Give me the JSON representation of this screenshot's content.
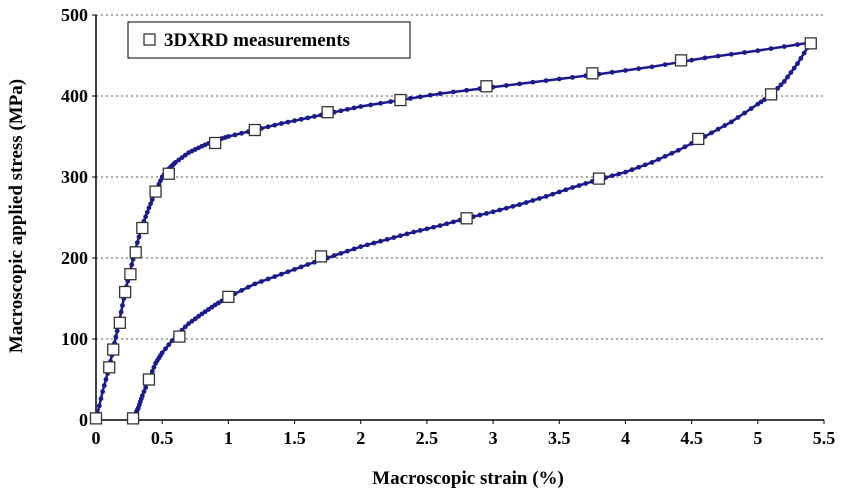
{
  "chart_data": {
    "type": "line",
    "xlabel": "Macroscopic strain (%)",
    "ylabel": "Macroscopic applied stress (MPa)",
    "xlim": [
      0,
      5.5
    ],
    "ylim": [
      0,
      500
    ],
    "x_ticks": [
      "0",
      "0.5",
      "1",
      "1.5",
      "2",
      "2.5",
      "3",
      "3.5",
      "4",
      "4.5",
      "5",
      "5.5"
    ],
    "y_ticks": [
      "0",
      "100",
      "200",
      "300",
      "400",
      "500"
    ],
    "grid": "horizontal-dashed",
    "legend_position": "top-left",
    "colors": {
      "curve": "#1a1a8c",
      "marker_fill": "#ffffff",
      "marker_stroke": "#333333"
    },
    "series": [
      {
        "role": "loading-curve",
        "x": [
          0,
          0.05,
          0.1,
          0.14,
          0.18,
          0.22,
          0.26,
          0.3,
          0.35,
          0.4,
          0.45,
          0.5,
          0.55,
          0.6,
          0.7,
          0.8,
          0.9,
          1.0,
          1.2,
          1.4,
          1.6,
          1.8,
          2.0,
          2.3,
          2.6,
          3.0,
          3.4,
          3.8,
          4.2,
          4.6,
          5.0,
          5.4
        ],
        "y": [
          0,
          35,
          65,
          95,
          125,
          158,
          185,
          212,
          240,
          262,
          282,
          300,
          310,
          318,
          330,
          338,
          345,
          350,
          358,
          366,
          373,
          380,
          387,
          395,
          403,
          411,
          419,
          427,
          436,
          447,
          456,
          466
        ]
      },
      {
        "role": "unloading-curve",
        "x": [
          5.4,
          5.3,
          5.2,
          5.1,
          5.0,
          4.8,
          4.6,
          4.4,
          4.2,
          4.0,
          3.8,
          3.6,
          3.4,
          3.2,
          3.0,
          2.8,
          2.6,
          2.4,
          2.2,
          2.0,
          1.8,
          1.6,
          1.4,
          1.2,
          1.0,
          0.9,
          0.8,
          0.7,
          0.6,
          0.5,
          0.45,
          0.4,
          0.35,
          0.32,
          0.3,
          0.28
        ],
        "y": [
          466,
          440,
          418,
          401,
          390,
          368,
          350,
          333,
          318,
          306,
          297,
          287,
          276,
          266,
          257,
          249,
          240,
          232,
          223,
          214,
          203,
          192,
          180,
          168,
          152,
          142,
          131,
          119,
          103,
          83,
          70,
          50,
          30,
          15,
          8,
          2
        ]
      },
      {
        "name": "3DXRD measurements",
        "role": "markers",
        "x": [
          0.0,
          0.1,
          0.13,
          0.18,
          0.22,
          0.26,
          0.3,
          0.35,
          0.45,
          0.55,
          0.9,
          1.2,
          1.75,
          2.3,
          2.95,
          3.75,
          4.42,
          5.4,
          5.1,
          4.55,
          3.8,
          2.8,
          1.7,
          1.0,
          0.63,
          0.4,
          0.28
        ],
        "y": [
          2,
          65,
          87,
          120,
          158,
          180,
          207,
          237,
          282,
          304,
          342,
          358,
          380,
          395,
          412,
          428,
          444,
          465,
          402,
          347,
          298,
          249,
          202,
          152,
          103,
          50,
          2
        ]
      }
    ]
  }
}
